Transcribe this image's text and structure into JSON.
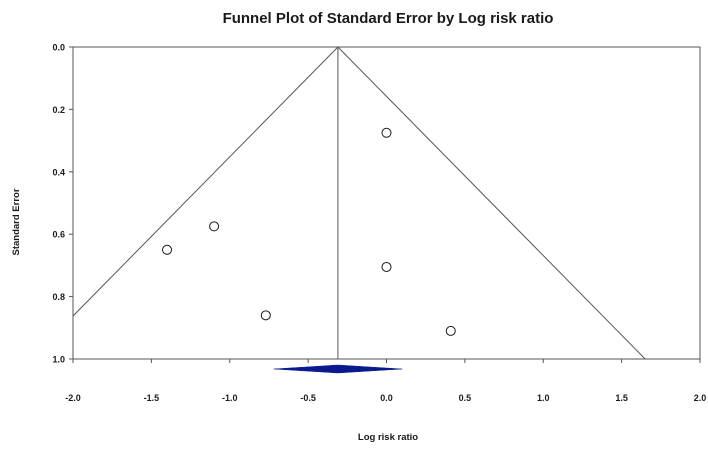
{
  "chart_data": {
    "type": "scatter",
    "title": "Funnel Plot of Standard Error by Log risk ratio",
    "xlabel": "Log risk ratio",
    "ylabel": "Standard Error",
    "xlim": [
      -2.0,
      2.0
    ],
    "ylim": [
      0.0,
      1.0
    ],
    "y_inverted": true,
    "grid": false,
    "x_ticks": [
      "-2.0",
      "-1.5",
      "-1.0",
      "-0.5",
      "0.0",
      "0.5",
      "1.0",
      "1.5",
      "2.0"
    ],
    "y_ticks": [
      "0.0",
      "0.2",
      "0.4",
      "0.6",
      "0.8",
      "1.0"
    ],
    "points": [
      {
        "x": 0.0,
        "y": 0.275
      },
      {
        "x": -1.1,
        "y": 0.575
      },
      {
        "x": -1.4,
        "y": 0.65
      },
      {
        "x": 0.0,
        "y": 0.705
      },
      {
        "x": -0.77,
        "y": 0.86
      },
      {
        "x": 0.41,
        "y": 0.91
      }
    ],
    "pooled_estimate": -0.31,
    "pooled_ci": [
      -0.72,
      0.1
    ],
    "funnel_slope_per_se": 1.96,
    "colors": {
      "points_stroke": "#1a1a1a",
      "diamond_fill": "#0a1a8c",
      "lines": "#555555"
    }
  }
}
